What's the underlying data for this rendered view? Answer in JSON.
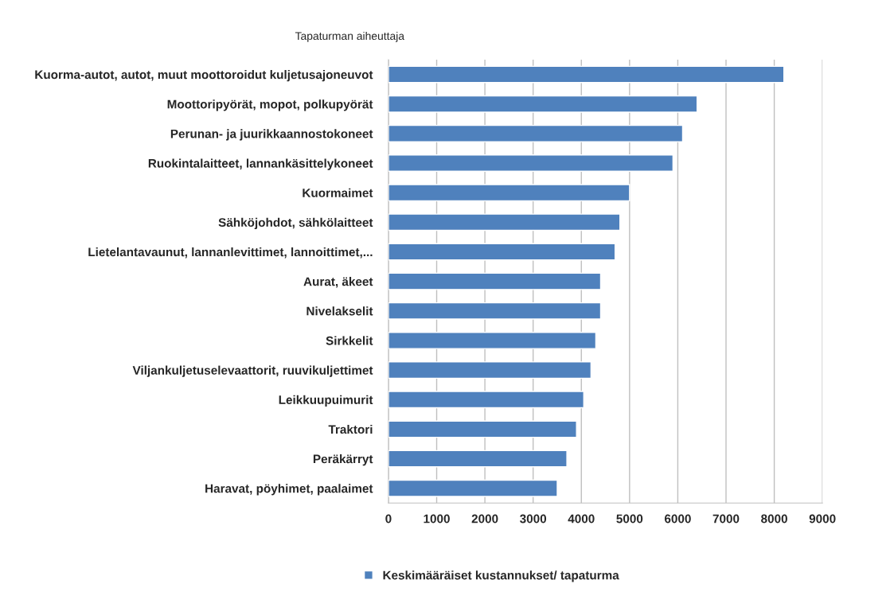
{
  "chart_data": {
    "type": "bar",
    "orientation": "horizontal",
    "ylabel": "Tapaturman aiheuttaja",
    "categories": [
      "Kuorma-autot, autot, muut moottoroidut kuljetusajoneuvot",
      "Moottoripyörät, mopot, polkupyörät",
      "Perunan- ja juurikkaannostokoneet",
      "Ruokintalaitteet, lannankäsittelykoneet",
      "Kuormaimet",
      "Sähköjohdot, sähkölaitteet",
      "Lietelantavaunut, lannanlevittimet, lannoittimet,...",
      "Aurat, äkeet",
      "Nivelakselit",
      "Sirkkelit",
      "Viljankuljetuselevaattorit, ruuvikuljettimet",
      "Leikkuupuimurit",
      "Traktori",
      "Peräkärryt",
      "Haravat, pöyhimet, paalaimet"
    ],
    "series": [
      {
        "name": "Keskimääräiset kustannukset/ tapaturma",
        "color": "#4f81bd",
        "values": [
          8200,
          6400,
          6100,
          5900,
          5000,
          4800,
          4700,
          4400,
          4400,
          4300,
          4200,
          4050,
          3900,
          3700,
          3500
        ]
      }
    ],
    "xlim": [
      0,
      9000
    ],
    "xticks": [
      0,
      1000,
      2000,
      3000,
      4000,
      5000,
      6000,
      7000,
      8000,
      9000
    ],
    "grid": "x",
    "legend": "bottom"
  }
}
